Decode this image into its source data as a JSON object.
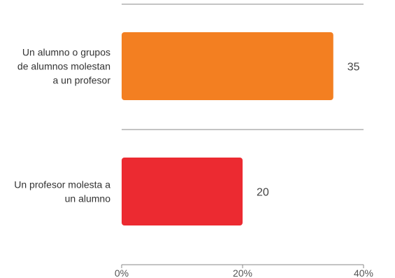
{
  "chart_data": {
    "type": "bar",
    "orientation": "horizontal",
    "categories": [
      [
        "Un alumno o grupos",
        "de alumnos molestan",
        "a un profesor"
      ],
      [
        "Un profesor molesta a",
        "un alumno"
      ]
    ],
    "values": [
      35,
      20
    ],
    "value_labels": [
      "35",
      "20"
    ],
    "bar_colors": [
      "#F37F21",
      "#EC2A31"
    ],
    "xlim": [
      0,
      40
    ],
    "xticks": [
      0,
      20,
      40
    ],
    "xtick_labels": [
      "0%",
      "20%",
      "40%"
    ],
    "grid": true,
    "title": "",
    "xlabel": "",
    "ylabel": ""
  }
}
